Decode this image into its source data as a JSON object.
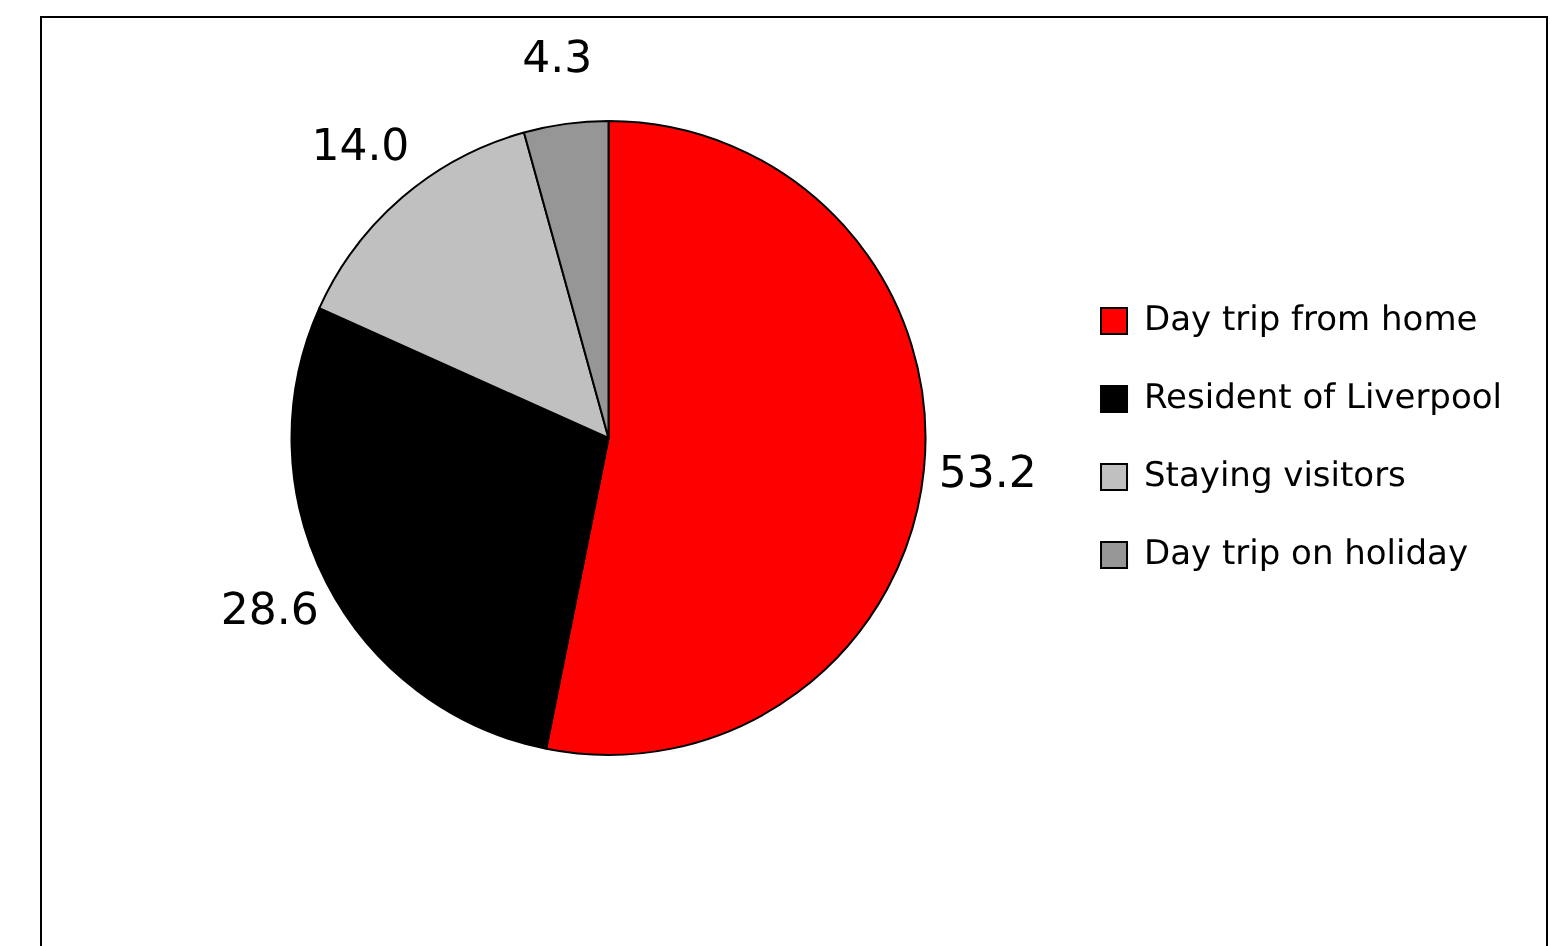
{
  "chart_data": {
    "type": "pie",
    "categories": [
      "Day trip from home",
      "Resident of Liverpool",
      "Staying visitors",
      "Day trip on holiday"
    ],
    "values": [
      53.2,
      28.6,
      14.0,
      4.3
    ],
    "colors": [
      "#ff0000",
      "#000000",
      "#c0c0c0",
      "#969696"
    ],
    "value_labels": [
      "53.2",
      "28.6",
      "14.0",
      "4.3"
    ],
    "legend": "right"
  }
}
